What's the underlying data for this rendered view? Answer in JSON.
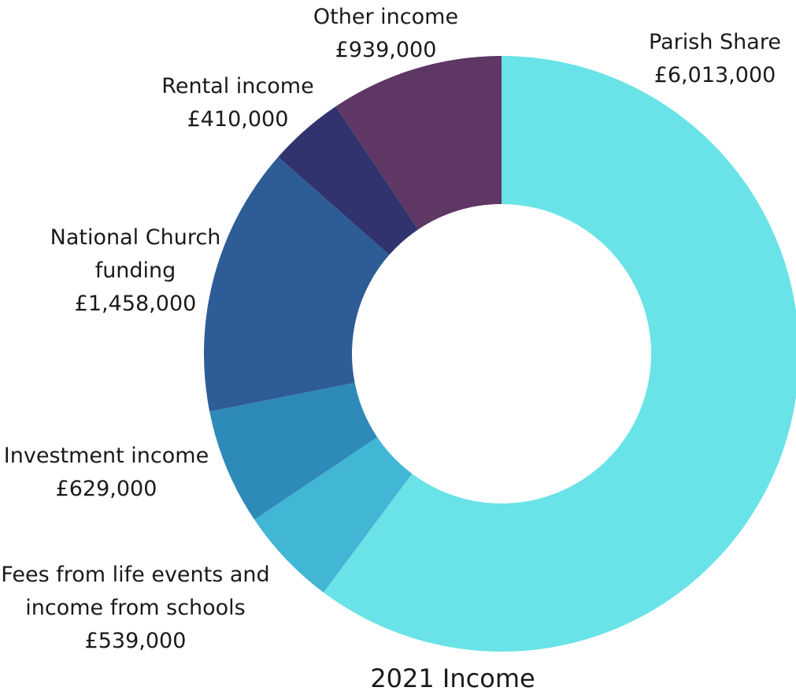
{
  "chart_data": {
    "type": "pie",
    "variant": "donut",
    "title": "2021 Income",
    "legend": "none",
    "slices": [
      {
        "name": "Parish Share",
        "label_lines": [
          "Parish Share",
          "£6,013,000"
        ],
        "value": 6013000,
        "color": "#69E3E7"
      },
      {
        "name": "Fees from life events and income from schools",
        "label_lines": [
          "Fees from life events and",
          "income from schools",
          "£539,000"
        ],
        "value": 539000,
        "color": "#42B6D5"
      },
      {
        "name": "Investment income",
        "label_lines": [
          "Investment income",
          "£629,000"
        ],
        "value": 629000,
        "color": "#2D8AB9"
      },
      {
        "name": "National Church funding",
        "label_lines": [
          "National Church",
          "funding",
          "£1,458,000"
        ],
        "value": 1458000,
        "color": "#2E5C96"
      },
      {
        "name": "Rental income",
        "label_lines": [
          "Rental income",
          "£410,000"
        ],
        "value": 410000,
        "color": "#30336D"
      },
      {
        "name": "Other income",
        "label_lines": [
          "Other income",
          "£939,000"
        ],
        "value": 939000,
        "color": "#5E3765"
      }
    ]
  }
}
